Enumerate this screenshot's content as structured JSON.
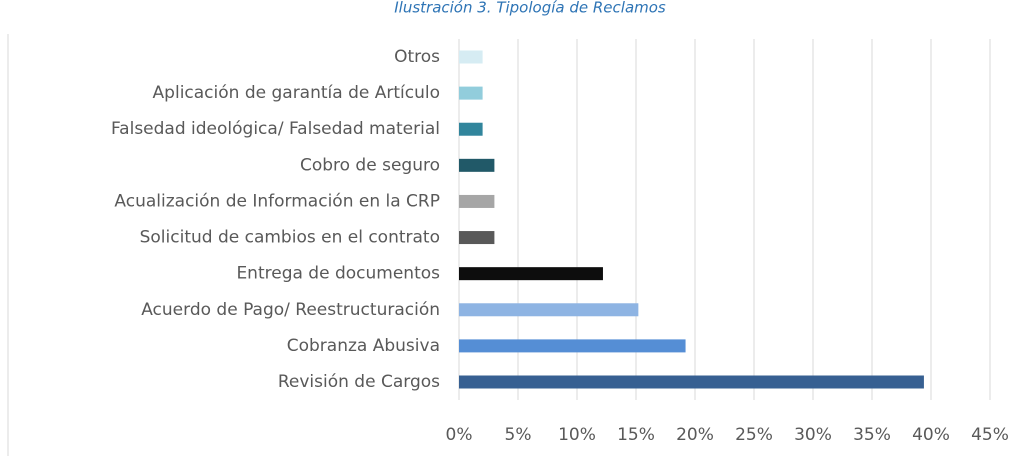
{
  "chart_data": {
    "type": "bar",
    "orientation": "horizontal",
    "title": "Ilustración 3. Tipología de Reclamos",
    "categories": [
      "Otros",
      "Aplicación de garantía de Artículo",
      "Falsedad ideológica/ Falsedad material",
      "Cobro de seguro",
      "Acualización de Información en la CRP",
      "Solicitud de cambios en el contrato",
      "Entrega de documentos",
      "Acuerdo de Pago/ Reestructuración",
      "Cobranza Abusiva",
      "Revisión de Cargos"
    ],
    "values": [
      2,
      2,
      2,
      3,
      3,
      3,
      12.2,
      15.2,
      19.2,
      39.4
    ],
    "colors": [
      "#d6ecf3",
      "#92cddc",
      "#31859c",
      "#215968",
      "#a6a6a6",
      "#595959",
      "#0d0d0d",
      "#8eb4e3",
      "#558ed5",
      "#376092"
    ],
    "xlim": [
      0,
      45
    ],
    "xticks": [
      {
        "value": 0,
        "label": "0%"
      },
      {
        "value": 5,
        "label": "5%"
      },
      {
        "value": 10,
        "label": "10%"
      },
      {
        "value": 15,
        "label": "15%"
      },
      {
        "value": 20,
        "label": "20%"
      },
      {
        "value": 25,
        "label": "25%"
      },
      {
        "value": 30,
        "label": "30%"
      },
      {
        "value": 35,
        "label": "35%"
      },
      {
        "value": 40,
        "label": "40%"
      },
      {
        "value": 45,
        "label": "45%"
      }
    ],
    "grid": true
  }
}
